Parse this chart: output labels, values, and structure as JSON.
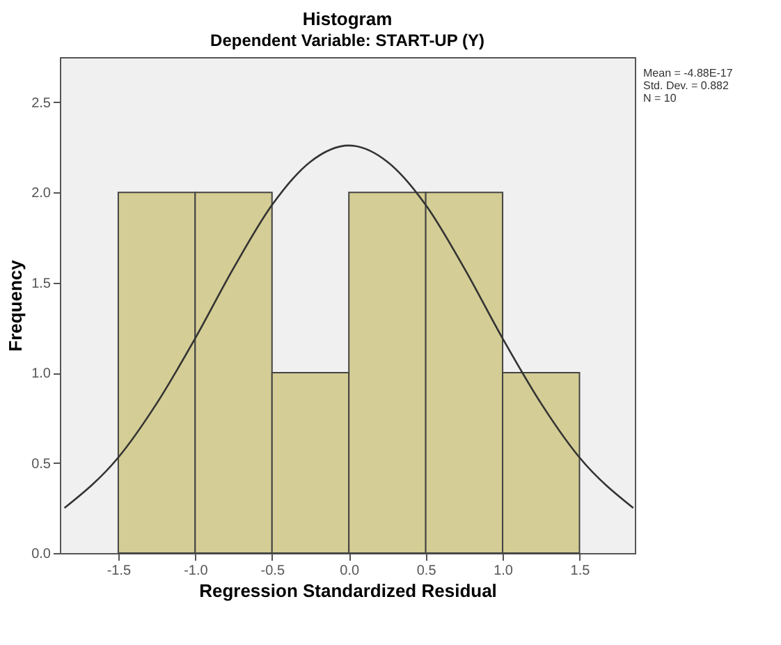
{
  "chart_data": {
    "type": "histogram",
    "title": "Histogram",
    "subtitle": "Dependent Variable: START-UP (Y)",
    "xlabel": "Regression Standardized Residual",
    "ylabel": "Frequency",
    "bins": [
      -1.5,
      -1.0,
      -0.5,
      0.0,
      0.5,
      1.0,
      1.5
    ],
    "values": [
      2,
      2,
      1,
      2,
      2,
      1
    ],
    "color": "#d4cd95",
    "series": [
      {
        "type": "line",
        "color": "#333333",
        "x": [
          -1.85,
          -1.5,
          -1.25,
          -1.0,
          -0.75,
          -0.5,
          -0.25,
          0.0,
          0.25,
          0.5,
          0.75,
          1.0,
          1.25,
          1.5,
          1.85
        ],
        "values": [
          0.25,
          0.53,
          0.83,
          1.19,
          1.58,
          1.93,
          2.17,
          2.26,
          2.17,
          1.93,
          1.58,
          1.19,
          0.83,
          0.53,
          0.25
        ]
      }
    ],
    "xlim": [
      -1.88,
      1.86
    ],
    "xticks": [
      {
        "value": -1.5,
        "label": "-1.5"
      },
      {
        "value": -1.0,
        "label": "-1.0"
      },
      {
        "value": -0.5,
        "label": "-0.5"
      },
      {
        "value": 0.0,
        "label": "0.0"
      },
      {
        "value": 0.5,
        "label": "0.5"
      },
      {
        "value": 1.0,
        "label": "1.0"
      },
      {
        "value": 1.5,
        "label": "1.5"
      }
    ],
    "ylim": [
      0,
      2.75
    ],
    "yticks": [
      {
        "value": 0,
        "label": "0.0"
      },
      {
        "value": 0.5,
        "label": "0.5"
      },
      {
        "value": 1.0,
        "label": "1.0"
      },
      {
        "value": 1.5,
        "label": "1.5"
      },
      {
        "value": 2.0,
        "label": "2.0"
      },
      {
        "value": 2.5,
        "label": "2.5"
      }
    ],
    "grid": false,
    "annotations": [
      "Mean = -4.88E-17",
      "Std. Dev. = 0.882",
      "N = 10"
    ]
  }
}
